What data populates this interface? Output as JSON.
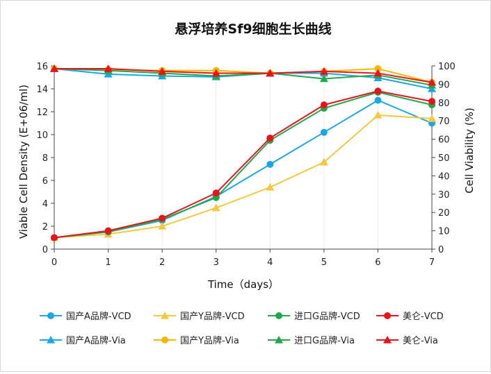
{
  "chart_data": {
    "type": "line",
    "title": "悬浮培养Sf9细胞生长曲线",
    "xlabel": "Time（days）",
    "ylabel": "Viable Cell Density (E+06/ml)",
    "y2label": "Cell Viability (%)",
    "x": [
      0,
      1,
      2,
      3,
      4,
      5,
      6,
      7
    ],
    "xlim": [
      0,
      7
    ],
    "ylim": [
      0,
      16
    ],
    "y2lim": [
      0,
      100
    ],
    "yticks": [
      0,
      2,
      4,
      6,
      8,
      10,
      12,
      14,
      16
    ],
    "y2ticks": [
      0,
      10,
      20,
      30,
      40,
      50,
      60,
      70,
      80,
      90,
      100
    ],
    "grid": "vertical",
    "legend_position": "bottom",
    "series": [
      {
        "name": "国产A品牌-VCD",
        "axis": "left",
        "marker": "circle",
        "color": "#1aa7e6",
        "values": [
          1.0,
          1.5,
          2.5,
          4.6,
          7.4,
          10.2,
          13.0,
          11.0
        ]
      },
      {
        "name": "国产Y品牌-VCD",
        "axis": "left",
        "marker": "triangle",
        "color": "#f5c842",
        "values": [
          1.0,
          1.3,
          2.0,
          3.6,
          5.4,
          7.6,
          11.7,
          11.4
        ]
      },
      {
        "name": "进口G品牌-VCD",
        "axis": "left",
        "marker": "circle",
        "color": "#21a84a",
        "values": [
          1.0,
          1.5,
          2.6,
          4.5,
          9.5,
          12.3,
          13.7,
          12.6
        ]
      },
      {
        "name": "美仑-VCD",
        "axis": "left",
        "marker": "circle",
        "color": "#e8141c",
        "values": [
          1.0,
          1.6,
          2.7,
          4.9,
          9.7,
          12.6,
          13.8,
          12.9
        ]
      },
      {
        "name": "国产A品牌-Via",
        "axis": "right",
        "marker": "triangle",
        "color": "#1aa7e6",
        "values": [
          98.5,
          95.5,
          94.5,
          94.0,
          96.0,
          96.0,
          93.5,
          87.5
        ]
      },
      {
        "name": "国产Y品牌-Via",
        "axis": "right",
        "marker": "circle",
        "color": "#f5b800",
        "values": [
          98.5,
          98.0,
          97.5,
          97.5,
          96.0,
          97.0,
          98.5,
          91.0
        ]
      },
      {
        "name": "进口G品牌-Via",
        "axis": "right",
        "marker": "triangle",
        "color": "#21a84a",
        "values": [
          98.5,
          97.5,
          96.0,
          94.5,
          96.0,
          93.0,
          95.0,
          89.5
        ]
      },
      {
        "name": "美仑-Via",
        "axis": "right",
        "marker": "triangle",
        "color": "#e8141c",
        "values": [
          98.5,
          98.5,
          97.0,
          96.0,
          96.0,
          97.0,
          96.0,
          91.0
        ]
      }
    ]
  }
}
